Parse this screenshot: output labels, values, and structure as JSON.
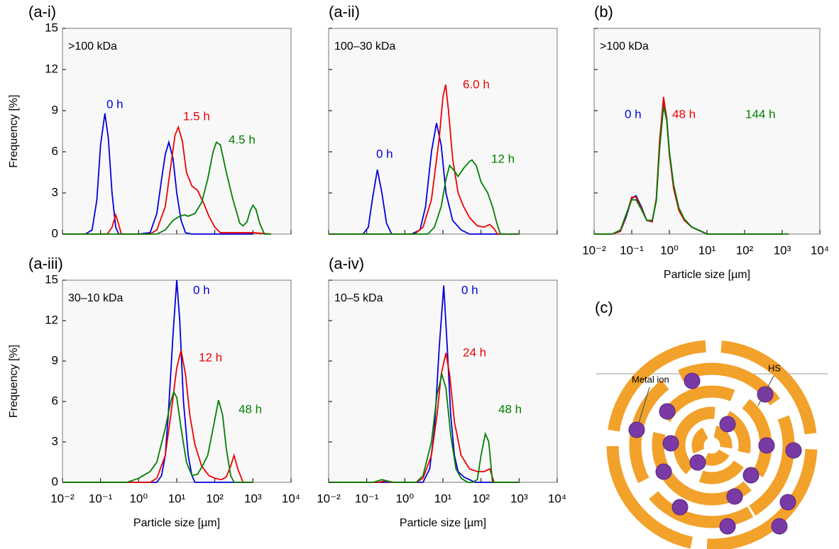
{
  "chart_data": [
    {
      "type": "line",
      "panel_label": "(a-i)",
      "annotation": ">100 kDa",
      "ylabel": "Frequency [%]",
      "xscale": "log",
      "xlim": [
        0.01,
        10000
      ],
      "xticks": [
        {
          "value": 0.01,
          "label": "10⁻²"
        },
        {
          "value": 0.1,
          "label": "10⁻¹"
        },
        {
          "value": 1,
          "label": "10⁰"
        },
        {
          "value": 10,
          "label": "10¹"
        },
        {
          "value": 100,
          "label": "10²"
        },
        {
          "value": 1000,
          "label": "10³"
        },
        {
          "value": 10000,
          "label": "10⁴"
        }
      ],
      "show_xtick_labels": false,
      "show_ytick_labels": true,
      "ylim": [
        0,
        15
      ],
      "yticks": [
        0,
        3,
        6,
        9,
        12,
        15
      ],
      "series": [
        {
          "name": "0 h",
          "color": "#0000dd",
          "x": [
            0.01,
            0.04,
            0.06,
            0.08,
            0.1,
            0.13,
            0.16,
            0.2,
            0.25,
            0.3,
            1,
            2,
            3,
            4,
            5,
            6.2,
            8,
            10,
            13,
            17,
            25,
            1000
          ],
          "values": [
            0,
            0,
            0.3,
            2.5,
            6.5,
            8.8,
            7,
            3,
            0.5,
            0,
            0,
            0.1,
            1.5,
            4,
            5.8,
            6.7,
            5.5,
            3,
            1,
            0.1,
            0,
            0
          ]
        },
        {
          "name": "1.5 h",
          "color": "#ee0000",
          "x": [
            0.01,
            0.15,
            0.2,
            0.25,
            0.3,
            0.35,
            2,
            3,
            5,
            7,
            9,
            11,
            14,
            18,
            25,
            35,
            50,
            70,
            100,
            140,
            200,
            1000,
            3000
          ],
          "values": [
            0,
            0,
            0.5,
            1.4,
            0.7,
            0,
            0,
            0.3,
            2,
            5,
            7.2,
            7.8,
            6.8,
            4.5,
            3.5,
            3.2,
            2.3,
            1.3,
            0.5,
            0.1,
            0.1,
            0.1,
            0
          ]
        },
        {
          "name": "4.5 h",
          "color": "#008000",
          "x": [
            0.01,
            3,
            5,
            8,
            12,
            16,
            20,
            30,
            45,
            65,
            90,
            110,
            140,
            200,
            300,
            450,
            550,
            700,
            850,
            1000,
            1200,
            1500,
            2000,
            3000
          ],
          "values": [
            0,
            0,
            0.3,
            1,
            1.3,
            1.4,
            1.3,
            1.5,
            2.3,
            4,
            6,
            6.7,
            6.5,
            4.5,
            2.5,
            0.8,
            0.6,
            0.9,
            1.7,
            2.1,
            1.8,
            0.8,
            0,
            0
          ]
        }
      ]
    },
    {
      "type": "line",
      "panel_label": "(a-ii)",
      "annotation": "100–30 kDa",
      "xscale": "log",
      "xlim": [
        0.01,
        10000
      ],
      "xticks": [
        {
          "value": 0.01,
          "label": "10⁻²"
        },
        {
          "value": 0.1,
          "label": "10⁻¹"
        },
        {
          "value": 1,
          "label": "10⁰"
        },
        {
          "value": 10,
          "label": "10¹"
        },
        {
          "value": 100,
          "label": "10²"
        },
        {
          "value": 1000,
          "label": "10³"
        },
        {
          "value": 10000,
          "label": "10⁴"
        }
      ],
      "show_xtick_labels": false,
      "show_ytick_labels": false,
      "ylim": [
        0,
        15
      ],
      "yticks": [
        0,
        3,
        6,
        9,
        12,
        15
      ],
      "series": [
        {
          "name": "0 h",
          "color": "#0000dd",
          "x": [
            0.01,
            0.08,
            0.11,
            0.14,
            0.19,
            0.25,
            0.33,
            0.45,
            1.5,
            2.5,
            3.5,
            5,
            6.8,
            9,
            12,
            18,
            30,
            50,
            1000
          ],
          "values": [
            0,
            0,
            0.5,
            2.5,
            4.7,
            3,
            0.8,
            0,
            0,
            0.3,
            2,
            6,
            8.1,
            6.5,
            3,
            1,
            0.3,
            0,
            0
          ]
        },
        {
          "name": "6.0 h",
          "color": "#ee0000",
          "x": [
            0.01,
            1.8,
            3,
            5,
            8,
            10,
            11.8,
            14,
            18,
            25,
            35,
            50,
            80,
            120,
            170,
            220,
            270,
            1000
          ],
          "values": [
            0,
            0,
            0.5,
            2.5,
            7,
            10,
            10.9,
            9,
            5.5,
            3,
            2,
            1.2,
            0.6,
            0.5,
            0.7,
            0.4,
            0,
            0
          ]
        },
        {
          "name": "12 h",
          "color": "#008000",
          "x": [
            0.01,
            4,
            6,
            9,
            12,
            15,
            20,
            25,
            35,
            50,
            58,
            75,
            100,
            150,
            200,
            260,
            320,
            1000
          ],
          "values": [
            0,
            0,
            0.5,
            2,
            4,
            5,
            4.6,
            4.2,
            4.8,
            5.3,
            5.4,
            5,
            3.8,
            3,
            2,
            0.8,
            0,
            0
          ]
        }
      ]
    },
    {
      "type": "line",
      "panel_label": "(b)",
      "annotation": ">100 kDa",
      "xlabel": "Particle size [µm]",
      "xscale": "log",
      "xlim": [
        0.01,
        10000
      ],
      "xticks": [
        {
          "value": 0.01,
          "label": "10⁻²"
        },
        {
          "value": 0.1,
          "label": "10⁻¹"
        },
        {
          "value": 1,
          "label": "10⁰"
        },
        {
          "value": 10,
          "label": "10¹"
        },
        {
          "value": 100,
          "label": "10²"
        },
        {
          "value": 1000,
          "label": "10³"
        },
        {
          "value": 10000,
          "label": "10⁴"
        }
      ],
      "show_xtick_labels": true,
      "show_ytick_labels": false,
      "ylim": [
        0,
        15
      ],
      "yticks": [
        0,
        3,
        6,
        9,
        12,
        15
      ],
      "series": [
        {
          "name": "0 h",
          "color": "#0000dd",
          "x": [
            0.01,
            0.03,
            0.05,
            0.07,
            0.1,
            0.13,
            0.18,
            0.25,
            0.35,
            0.45,
            0.55,
            0.7,
            0.85,
            1,
            1.3,
            1.8,
            2.5,
            4,
            7,
            10,
            1000
          ],
          "values": [
            0,
            0,
            0.2,
            1.2,
            2.6,
            2.8,
            2,
            1,
            0.9,
            2.5,
            6.5,
            9.8,
            8.5,
            6,
            3.5,
            1.8,
            1,
            0.5,
            0.2,
            0,
            0
          ]
        },
        {
          "name": "48 h",
          "color": "#ee0000",
          "x": [
            0.01,
            0.03,
            0.05,
            0.07,
            0.1,
            0.13,
            0.18,
            0.25,
            0.35,
            0.45,
            0.55,
            0.7,
            0.85,
            1,
            1.3,
            1.8,
            2.5,
            4,
            7,
            10,
            1000
          ],
          "values": [
            0,
            0,
            0.2,
            1.3,
            2.7,
            2.7,
            1.9,
            1,
            0.9,
            2.6,
            6.8,
            10,
            8.4,
            5.8,
            3.3,
            1.7,
            1,
            0.5,
            0.2,
            0,
            0
          ]
        },
        {
          "name": "144 h",
          "color": "#008000",
          "x": [
            0.01,
            0.03,
            0.05,
            0.07,
            0.1,
            0.13,
            0.18,
            0.25,
            0.35,
            0.45,
            0.55,
            0.7,
            0.85,
            1,
            1.3,
            1.8,
            2.5,
            4,
            7,
            10,
            1500
          ],
          "values": [
            0,
            0,
            0.3,
            1.4,
            2.5,
            2.5,
            1.8,
            1,
            1,
            2.4,
            6.2,
            9.3,
            8.3,
            6,
            3.6,
            1.9,
            1.1,
            0.5,
            0.2,
            0,
            0
          ]
        }
      ]
    },
    {
      "type": "line",
      "panel_label": "(a-iii)",
      "annotation": "30–10 kDa",
      "xlabel": "Particle size [µm]",
      "ylabel": "Frequency [%]",
      "xscale": "log",
      "xlim": [
        0.01,
        10000
      ],
      "xticks": [
        {
          "value": 0.01,
          "label": "10⁻²"
        },
        {
          "value": 0.1,
          "label": "10⁻¹"
        },
        {
          "value": 1,
          "label": "10⁰"
        },
        {
          "value": 10,
          "label": "10¹"
        },
        {
          "value": 100,
          "label": "10²"
        },
        {
          "value": 1000,
          "label": "10³"
        },
        {
          "value": 10000,
          "label": "10⁴"
        }
      ],
      "show_xtick_labels": true,
      "show_ytick_labels": true,
      "ylim": [
        0,
        15
      ],
      "yticks": [
        0,
        3,
        6,
        9,
        12,
        15
      ],
      "series": [
        {
          "name": "0 h",
          "color": "#0000dd",
          "x": [
            0.01,
            3,
            4,
            5,
            6,
            8,
            10,
            12,
            15,
            20,
            25,
            30,
            1000
          ],
          "values": [
            0,
            0,
            0.5,
            2,
            5,
            11,
            15,
            12,
            6,
            2,
            0.5,
            0,
            0
          ]
        },
        {
          "name": "12 h",
          "color": "#ee0000",
          "x": [
            0.01,
            2,
            3,
            5,
            7,
            10,
            13,
            17,
            22,
            30,
            45,
            70,
            100,
            150,
            200,
            260,
            320,
            400,
            550,
            1000
          ],
          "values": [
            0,
            0,
            0.3,
            2,
            5,
            8.5,
            9.8,
            8,
            5,
            2.8,
            1.2,
            0.5,
            0.3,
            0.2,
            0.4,
            1.2,
            2,
            1,
            0,
            0
          ]
        },
        {
          "name": "48 h",
          "color": "#008000",
          "x": [
            0.01,
            0.5,
            1,
            2,
            3,
            5,
            7,
            8.3,
            10,
            13,
            18,
            25,
            35,
            47,
            65,
            90,
            125,
            160,
            200,
            260,
            320,
            1000
          ],
          "values": [
            0,
            0,
            0.3,
            0.8,
            1.5,
            4,
            6,
            6.7,
            6.3,
            4,
            1.5,
            0.5,
            0.6,
            1.2,
            2,
            4,
            6.1,
            5,
            2.5,
            0.5,
            0,
            0
          ]
        }
      ]
    },
    {
      "type": "line",
      "panel_label": "(a-iv)",
      "annotation": "10–5 kDa",
      "xlabel": "Particle size [µm]",
      "xscale": "log",
      "xlim": [
        0.01,
        10000
      ],
      "xticks": [
        {
          "value": 0.01,
          "label": "10⁻²"
        },
        {
          "value": 0.1,
          "label": "10⁻¹"
        },
        {
          "value": 1,
          "label": "10⁰"
        },
        {
          "value": 10,
          "label": "10¹"
        },
        {
          "value": 100,
          "label": "10²"
        },
        {
          "value": 1000,
          "label": "10³"
        },
        {
          "value": 10000,
          "label": "10⁴"
        }
      ],
      "show_xtick_labels": true,
      "show_ytick_labels": false,
      "ylim": [
        0,
        15
      ],
      "yticks": [
        0,
        3,
        6,
        9,
        12,
        15
      ],
      "series": [
        {
          "name": "0 h",
          "color": "#0000dd",
          "x": [
            0.01,
            3,
            4.5,
            6,
            8,
            10.5,
            13,
            16,
            20,
            25,
            35,
            50,
            70,
            1000
          ],
          "values": [
            0,
            0,
            1,
            4,
            10,
            14.6,
            10,
            5,
            2,
            0.8,
            0.4,
            0.2,
            0,
            0
          ]
        },
        {
          "name": "24 h",
          "color": "#ee0000",
          "x": [
            0.01,
            0.2,
            0.3,
            0.45,
            2,
            3,
            5,
            7,
            9,
            12,
            15,
            20,
            30,
            50,
            80,
            120,
            170,
            220,
            1000
          ],
          "values": [
            0,
            0,
            0.1,
            0,
            0,
            0.3,
            2,
            5,
            8,
            9.6,
            8,
            4.5,
            2,
            1,
            0.8,
            0.8,
            1,
            0,
            0
          ]
        },
        {
          "name": "48 h",
          "color": "#008000",
          "x": [
            0.01,
            0.15,
            0.25,
            0.35,
            0.5,
            2,
            3,
            5,
            7,
            9.4,
            12,
            16,
            22,
            30,
            45,
            60,
            80,
            100,
            130,
            160,
            200,
            1000
          ],
          "values": [
            0,
            0,
            0.2,
            0.1,
            0,
            0,
            0.5,
            3,
            6.5,
            8,
            7,
            3.5,
            1,
            0.3,
            0,
            0,
            0.2,
            2,
            3.6,
            3,
            0,
            0
          ]
        }
      ]
    }
  ],
  "diagram": {
    "label": "(c)",
    "metal_ion": "Metal ion",
    "hs": "HS"
  }
}
